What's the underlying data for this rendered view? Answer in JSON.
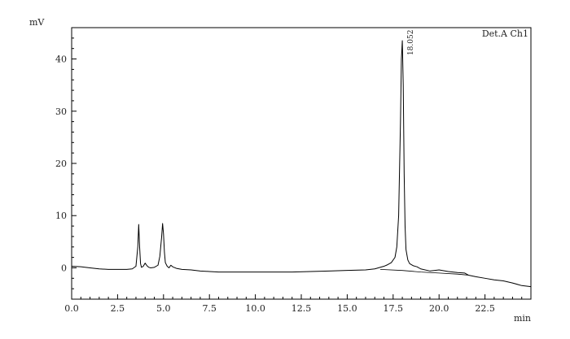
{
  "chart_data": {
    "type": "line",
    "title": "",
    "xlabel": "min",
    "ylabel": "mV",
    "xlim": [
      0,
      25.0
    ],
    "ylim": [
      -6,
      46
    ],
    "x_ticks": [
      0.0,
      2.5,
      5.0,
      7.5,
      10.0,
      12.5,
      15.0,
      17.5,
      20.0,
      22.5
    ],
    "x_tick_labels": [
      "0.0",
      "2.5",
      "5.0",
      "7.5",
      "10.0",
      "12.5",
      "15.0",
      "17.5",
      "20.0",
      "22.5"
    ],
    "y_ticks": [
      0,
      10,
      20,
      30,
      40
    ],
    "y_tick_labels": [
      "0",
      "10",
      "20",
      "30",
      "40"
    ],
    "legend": {
      "text": "Det.A Ch1",
      "position": "top-right"
    },
    "grid": false,
    "series": [
      {
        "name": "Det.A Ch1",
        "x": [
          0.0,
          0.5,
          1.0,
          1.5,
          2.0,
          2.5,
          3.0,
          3.3,
          3.5,
          3.6,
          3.65,
          3.7,
          3.75,
          3.8,
          3.9,
          4.0,
          4.1,
          4.2,
          4.3,
          4.5,
          4.7,
          4.8,
          4.9,
          4.95,
          5.0,
          5.05,
          5.1,
          5.2,
          5.3,
          5.4,
          5.5,
          5.7,
          6.0,
          6.5,
          7.0,
          7.5,
          8.0,
          9.0,
          10.0,
          11.0,
          12.0,
          13.0,
          14.0,
          15.0,
          16.0,
          16.5,
          17.0,
          17.2,
          17.4,
          17.6,
          17.7,
          17.8,
          17.9,
          17.95,
          18.0,
          18.05,
          18.1,
          18.15,
          18.2,
          18.3,
          18.4,
          18.6,
          18.8,
          19.0,
          19.5,
          20.0,
          20.5,
          21.0,
          21.4,
          21.6,
          22.0,
          22.5,
          23.0,
          23.5,
          24.0,
          24.5,
          25.0
        ],
        "y": [
          0.3,
          0.2,
          0.0,
          -0.2,
          -0.3,
          -0.3,
          -0.3,
          -0.2,
          0.3,
          4.0,
          8.3,
          4.0,
          0.8,
          0.1,
          0.3,
          0.9,
          0.4,
          0.1,
          0.0,
          0.1,
          0.5,
          2.2,
          6.0,
          8.5,
          6.5,
          3.0,
          1.0,
          0.3,
          0.0,
          0.5,
          0.2,
          -0.1,
          -0.3,
          -0.4,
          -0.6,
          -0.7,
          -0.8,
          -0.8,
          -0.8,
          -0.8,
          -0.8,
          -0.7,
          -0.6,
          -0.5,
          -0.4,
          -0.2,
          0.3,
          0.6,
          1.0,
          2.0,
          4.0,
          10.0,
          28.0,
          40.0,
          43.5,
          35.0,
          18.0,
          8.0,
          3.5,
          1.5,
          0.8,
          0.4,
          0.2,
          -0.2,
          -0.6,
          -0.4,
          -0.7,
          -0.9,
          -1.0,
          -1.4,
          -1.7,
          -2.0,
          -2.3,
          -2.5,
          -2.9,
          -3.4,
          -3.6
        ]
      },
      {
        "name": "baseline",
        "x": [
          16.8,
          18.0,
          19.0,
          20.0,
          21.0,
          21.6
        ],
        "y": [
          -0.3,
          -0.5,
          -0.8,
          -1.0,
          -1.2,
          -1.4
        ]
      }
    ],
    "peak_annotations": [
      {
        "x": 18.052,
        "y": 43.5,
        "label": "18.052"
      }
    ]
  }
}
